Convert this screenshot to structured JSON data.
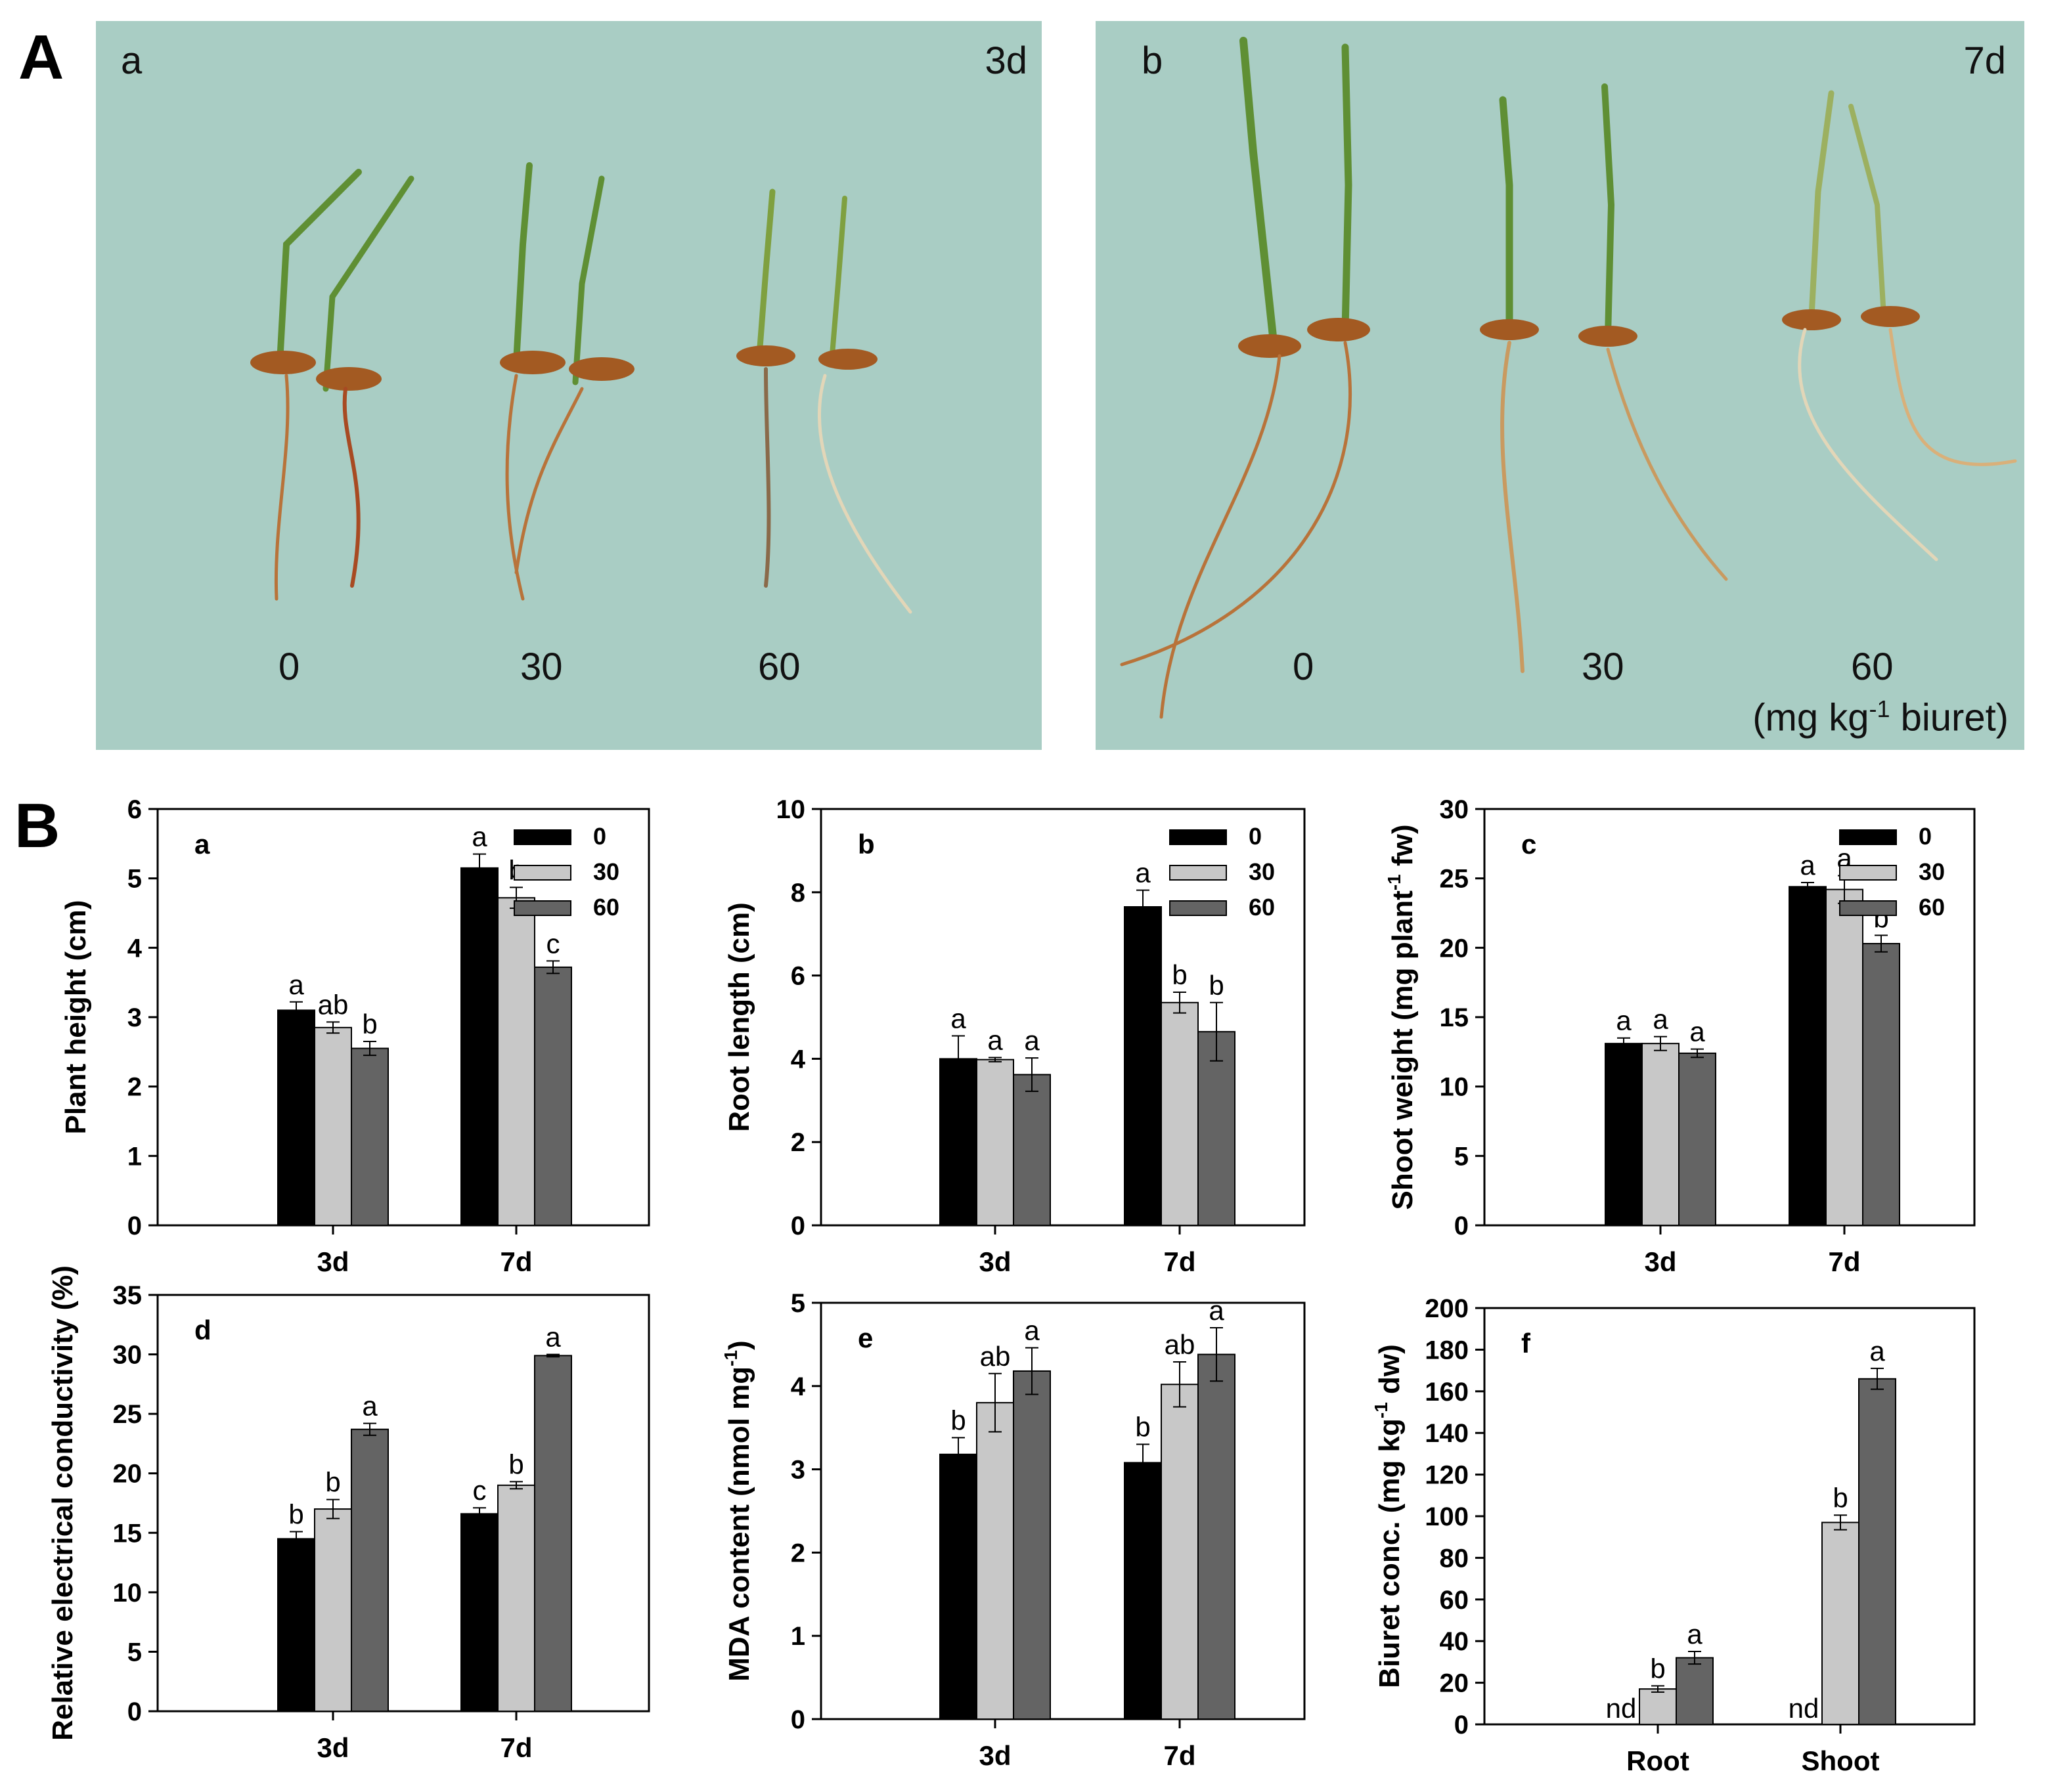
{
  "panel_A_letter": "A",
  "panel_B_letter": "B",
  "photos": [
    {
      "label": "a",
      "day": "3d",
      "doses": [
        "0",
        "30",
        "60"
      ]
    },
    {
      "label": "b",
      "day": "7d",
      "doses": [
        "0",
        "30",
        "60"
      ],
      "unit_prefix": "(mg kg",
      "unit_sup": "-1",
      "unit_suffix": " biuret)"
    }
  ],
  "colors": {
    "c0": "#000000",
    "c30": "#c8c8c8",
    "c60": "#646464",
    "photo_bg": "#a9cdc4"
  },
  "legend": [
    "0",
    "30",
    "60"
  ],
  "chart_data": [
    {
      "type": "bar",
      "panel": "a",
      "ylabel": "Plant height (cm)",
      "ylim": [
        0,
        6
      ],
      "yticks": [
        0,
        1,
        2,
        3,
        4,
        5,
        6
      ],
      "categories": [
        "3d",
        "7d"
      ],
      "legend": true,
      "series": [
        {
          "name": "0",
          "values": [
            3.1,
            5.15
          ],
          "errors": [
            0.12,
            0.2
          ],
          "letters": [
            "a",
            "a"
          ]
        },
        {
          "name": "30",
          "values": [
            2.85,
            4.72
          ],
          "errors": [
            0.08,
            0.15
          ],
          "letters": [
            "ab",
            "b"
          ]
        },
        {
          "name": "60",
          "values": [
            2.55,
            3.72
          ],
          "errors": [
            0.1,
            0.09
          ],
          "letters": [
            "b",
            "c"
          ]
        }
      ]
    },
    {
      "type": "bar",
      "panel": "b",
      "ylabel": "Root length (cm)",
      "ylim": [
        0,
        10
      ],
      "yticks": [
        0,
        2,
        4,
        6,
        8,
        10
      ],
      "categories": [
        "3d",
        "7d"
      ],
      "legend": true,
      "series": [
        {
          "name": "0",
          "values": [
            4.0,
            7.65
          ],
          "errors": [
            0.55,
            0.4
          ],
          "letters": [
            "a",
            "a"
          ]
        },
        {
          "name": "30",
          "values": [
            3.98,
            5.35
          ],
          "errors": [
            0.05,
            0.25
          ],
          "letters": [
            "a",
            "b"
          ]
        },
        {
          "name": "60",
          "values": [
            3.62,
            4.65
          ],
          "errors": [
            0.4,
            0.7
          ],
          "letters": [
            "a",
            "b"
          ]
        }
      ]
    },
    {
      "type": "bar",
      "panel": "c",
      "ylabel_prefix": "Shoot weight (mg plant",
      "ylabel_sup": "-1",
      "ylabel_suffix": " fw)",
      "ylim": [
        0,
        30
      ],
      "yticks": [
        0,
        5,
        10,
        15,
        20,
        25,
        30
      ],
      "categories": [
        "3d",
        "7d"
      ],
      "legend": true,
      "series": [
        {
          "name": "0",
          "values": [
            13.1,
            24.4
          ],
          "errors": [
            0.4,
            0.3
          ],
          "letters": [
            "a",
            "a"
          ]
        },
        {
          "name": "30",
          "values": [
            13.1,
            24.2
          ],
          "errors": [
            0.5,
            1.0
          ],
          "letters": [
            "a",
            "a"
          ]
        },
        {
          "name": "60",
          "values": [
            12.4,
            20.3
          ],
          "errors": [
            0.3,
            0.6
          ],
          "letters": [
            "a",
            "b"
          ]
        }
      ]
    },
    {
      "type": "bar",
      "panel": "d",
      "ylabel": "Relative electrical conductivity (%)",
      "ylim": [
        0,
        35
      ],
      "yticks": [
        0,
        5,
        10,
        15,
        20,
        25,
        30,
        35
      ],
      "categories": [
        "3d",
        "7d"
      ],
      "legend": false,
      "series": [
        {
          "name": "0",
          "values": [
            14.5,
            16.6
          ],
          "errors": [
            0.6,
            0.5
          ],
          "letters": [
            "b",
            "c"
          ]
        },
        {
          "name": "30",
          "values": [
            17.0,
            19.0
          ],
          "errors": [
            0.8,
            0.3
          ],
          "letters": [
            "b",
            "b"
          ]
        },
        {
          "name": "60",
          "values": [
            23.7,
            29.9
          ],
          "errors": [
            0.5,
            0.1
          ],
          "letters": [
            "a",
            "a"
          ]
        }
      ]
    },
    {
      "type": "bar",
      "panel": "e",
      "ylabel_prefix": "MDA content (nmol mg",
      "ylabel_sup": "-1",
      "ylabel_suffix": ")",
      "ylim": [
        0,
        5
      ],
      "yticks": [
        0,
        1,
        2,
        3,
        4,
        5
      ],
      "categories": [
        "3d",
        "7d"
      ],
      "legend": false,
      "series": [
        {
          "name": "0",
          "values": [
            3.18,
            3.08
          ],
          "errors": [
            0.2,
            0.22
          ],
          "letters": [
            "b",
            "b"
          ]
        },
        {
          "name": "30",
          "values": [
            3.8,
            4.02
          ],
          "errors": [
            0.35,
            0.27
          ],
          "letters": [
            "ab",
            "ab"
          ]
        },
        {
          "name": "60",
          "values": [
            4.18,
            4.38
          ],
          "errors": [
            0.28,
            0.32
          ],
          "letters": [
            "a",
            "a"
          ]
        }
      ]
    },
    {
      "type": "bar",
      "panel": "f",
      "ylabel_prefix": "Biuret conc. (mg kg",
      "ylabel_sup": "-1",
      "ylabel_suffix": " dw)",
      "ylim": [
        0,
        200
      ],
      "yticks": [
        0,
        20,
        40,
        60,
        80,
        100,
        120,
        140,
        160,
        180,
        200
      ],
      "categories": [
        "Root",
        "Shoot"
      ],
      "legend": false,
      "series": [
        {
          "name": "0",
          "values": [
            null,
            null
          ],
          "errors": [
            null,
            null
          ],
          "letters": [
            "nd",
            "nd"
          ]
        },
        {
          "name": "30",
          "values": [
            17,
            97
          ],
          "errors": [
            1.5,
            3.5
          ],
          "letters": [
            "b",
            "b"
          ]
        },
        {
          "name": "60",
          "values": [
            32,
            166
          ],
          "errors": [
            3,
            5
          ],
          "letters": [
            "a",
            "a"
          ]
        }
      ]
    }
  ]
}
